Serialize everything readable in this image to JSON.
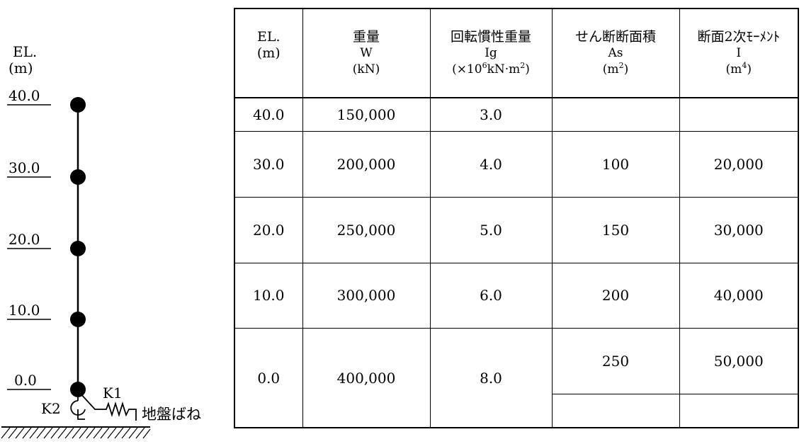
{
  "model": {
    "axis_title": "EL.",
    "axis_unit": "(m)",
    "levels": [
      {
        "label": "40.0"
      },
      {
        "label": "30.0"
      },
      {
        "label": "20.0"
      },
      {
        "label": "10.0"
      },
      {
        "label": "0.0"
      }
    ],
    "k1_label": "K1",
    "k2_label": "K2",
    "spring_label": "地盤ばね"
  },
  "table": {
    "headers": {
      "el": {
        "line1": "EL.",
        "line2": "(m)"
      },
      "weight": {
        "line1": "重量",
        "line2": "W",
        "line3": "(kN)"
      },
      "rot_inertia": {
        "line1": "回転慣性重量",
        "line2": "Ig",
        "line3_pre": "(×10",
        "line3_sup": "6",
        "line3_post": "kN·m",
        "line3_sup2": "2",
        "line3_end": ")"
      },
      "shear_area": {
        "line1": "せん断断面積",
        "line2": "As",
        "line3_pre": "(m",
        "line3_sup": "2",
        "line3_end": ")"
      },
      "moment": {
        "line1": "断面2次ﾓｰﾒﾝﾄ",
        "line2": "I",
        "line3_pre": "(m",
        "line3_sup": "4",
        "line3_end": ")"
      }
    },
    "mass_rows": [
      {
        "el": "40.0",
        "weight": "150,000",
        "ig": "3.0"
      },
      {
        "el": "30.0",
        "weight": "200,000",
        "ig": "4.0"
      },
      {
        "el": "20.0",
        "weight": "250,000",
        "ig": "5.0"
      },
      {
        "el": "10.0",
        "weight": "300,000",
        "ig": "6.0"
      },
      {
        "el": "0.0",
        "weight": "400,000",
        "ig": "8.0"
      }
    ],
    "member_rows": [
      {
        "as": "100",
        "i": "20,000"
      },
      {
        "as": "150",
        "i": "30,000"
      },
      {
        "as": "200",
        "i": "40,000"
      },
      {
        "as": "250",
        "i": "50,000"
      }
    ]
  }
}
